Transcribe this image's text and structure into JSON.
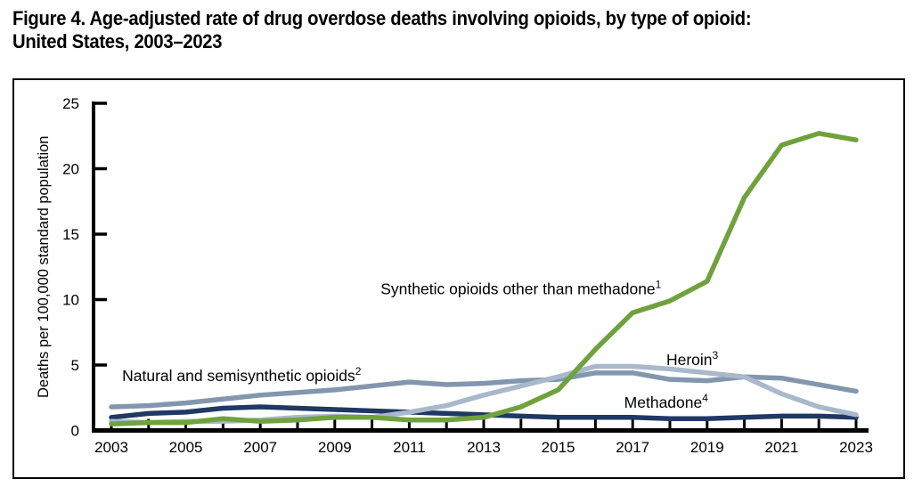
{
  "figure": {
    "title_lines": [
      "Figure 4. Age-adjusted rate of drug overdose deaths involving opioids, by type of opioid:",
      "United States, 2003–2023"
    ]
  },
  "chart_data": {
    "type": "line",
    "title": "Figure 4. Age-adjusted rate of drug overdose deaths involving opioids, by type of opioid: United States, 2003–2023",
    "xlabel": "",
    "ylabel": "Deaths per 100,000 standard population",
    "ylim": [
      0,
      25
    ],
    "yticks": [
      0,
      5,
      10,
      15,
      20,
      25
    ],
    "grid": false,
    "legend_position": "inline-annotations",
    "axis_color": "#000000",
    "text_color": "#000000",
    "x": [
      2003,
      2004,
      2005,
      2006,
      2007,
      2008,
      2009,
      2010,
      2011,
      2012,
      2013,
      2014,
      2015,
      2016,
      2017,
      2018,
      2019,
      2020,
      2021,
      2022,
      2023
    ],
    "xtick_labels": [
      "2003",
      "2005",
      "2007",
      "2009",
      "2011",
      "2013",
      "2015",
      "2017",
      "2019",
      "2021",
      "2023"
    ],
    "series": [
      {
        "key": "natural-semisynthetic-opioids",
        "name": "Natural and semisynthetic opioids",
        "footnote_sup": "2",
        "color": "#8296ae",
        "values": [
          1.8,
          1.9,
          2.1,
          2.4,
          2.7,
          2.9,
          3.1,
          3.4,
          3.7,
          3.5,
          3.6,
          3.8,
          3.9,
          4.4,
          4.4,
          3.9,
          3.8,
          4.1,
          4.0,
          3.5,
          3.0
        ],
        "label_anchor": {
          "x": 2006.5,
          "y": 4.2
        }
      },
      {
        "key": "methadone",
        "name": "Methadone",
        "footnote_sup": "4",
        "color": "#1f3864",
        "values": [
          1.0,
          1.3,
          1.4,
          1.7,
          1.8,
          1.7,
          1.6,
          1.5,
          1.4,
          1.3,
          1.2,
          1.1,
          1.0,
          1.0,
          1.0,
          0.9,
          0.9,
          1.0,
          1.1,
          1.1,
          1.0
        ],
        "label_anchor": {
          "x": 2017.9,
          "y": 2.15
        }
      },
      {
        "key": "heroin",
        "name": "Heroin",
        "footnote_sup": "3",
        "color": "#a9b8cb",
        "values": [
          0.7,
          0.6,
          0.7,
          0.7,
          0.8,
          1.0,
          1.1,
          1.0,
          1.4,
          1.9,
          2.7,
          3.4,
          4.1,
          4.9,
          4.9,
          4.7,
          4.4,
          4.1,
          2.8,
          1.8,
          1.2
        ],
        "label_anchor": {
          "x": 2018.6,
          "y": 5.4
        }
      },
      {
        "key": "synthetic-opioids-other-than-methadone",
        "name": "Synthetic opioids other than methadone",
        "footnote_sup": "1",
        "color": "#6fa23d",
        "values": [
          0.5,
          0.6,
          0.6,
          0.9,
          0.7,
          0.8,
          1.0,
          1.0,
          0.8,
          0.8,
          1.0,
          1.8,
          3.1,
          6.2,
          9.0,
          9.9,
          11.4,
          17.8,
          21.8,
          22.7,
          22.2
        ],
        "label_anchor": {
          "x": 2014.0,
          "y": 10.8
        }
      }
    ]
  }
}
